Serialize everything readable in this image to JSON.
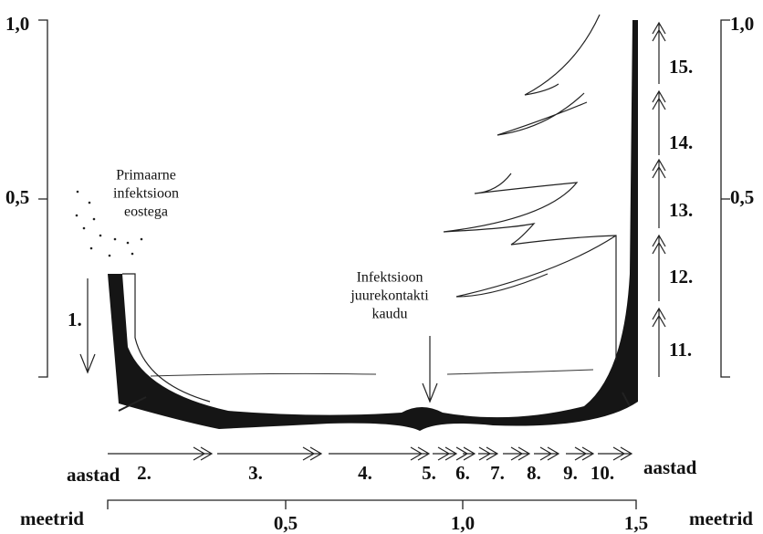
{
  "left_axis": {
    "labels": [
      "1,0",
      "0,5"
    ]
  },
  "right_axis": {
    "labels": [
      "1,0",
      "0,5"
    ]
  },
  "annotations": {
    "primary": [
      "Primaarne",
      "infektsioon",
      "eostega"
    ],
    "root_contact": [
      "Infektsioon",
      "juurekontakti",
      "kaudu"
    ]
  },
  "years": {
    "first": "1.",
    "unit_left": "aastad",
    "bottom": [
      "2.",
      "3.",
      "4.",
      "5.",
      "6.",
      "7.",
      "8.",
      "9.",
      "10."
    ],
    "unit_right": "aastad",
    "right": [
      "11.",
      "12.",
      "13.",
      "14.",
      "15."
    ]
  },
  "distance": {
    "unit_left": "meetrid",
    "labels": [
      "0,5",
      "1,0",
      "1,5"
    ],
    "unit_right": "meetrid"
  }
}
